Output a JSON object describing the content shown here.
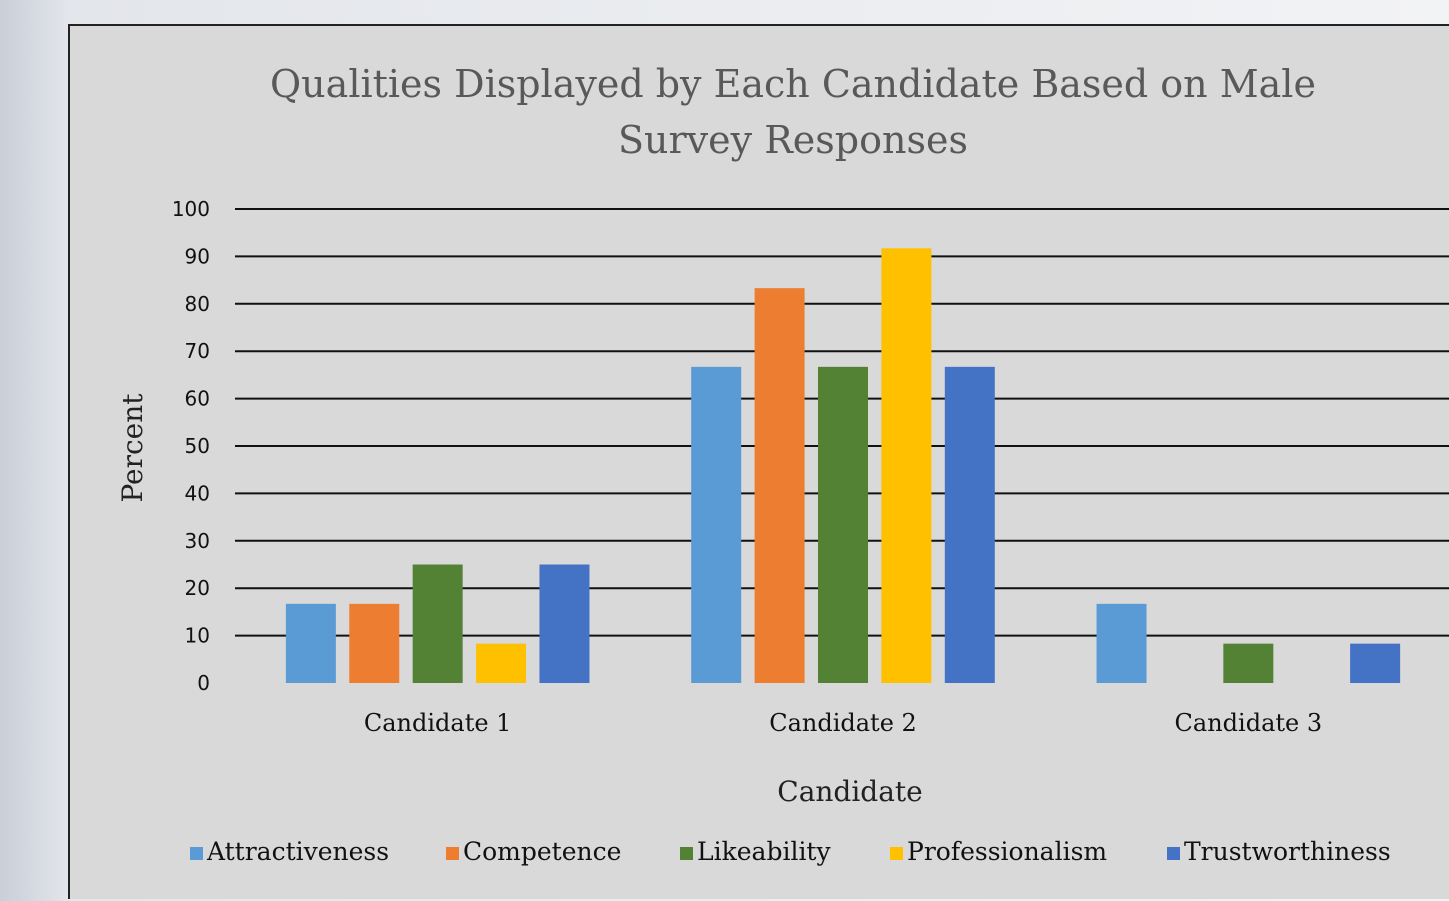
{
  "chart_data": {
    "type": "bar",
    "title": "Qualities Displayed by Each Candidate Based on Male Survey Responses",
    "title_lines": [
      "Qualities Displayed by Each Candidate Based on Male",
      "Survey Responses"
    ],
    "xlabel": "Candidate",
    "ylabel": "Percent",
    "categories": [
      "Candidate 1",
      "Candidate 2",
      "Candidate 3"
    ],
    "yticks": [
      "0",
      "10",
      "20",
      "30",
      "40",
      "50",
      "60",
      "70",
      "80",
      "90",
      "100"
    ],
    "ylim": [
      0,
      100
    ],
    "grid": true,
    "legend_position": "bottom",
    "series": [
      {
        "name": "Attractiveness",
        "color": "#5b9bd5",
        "values": [
          16.7,
          66.7,
          16.7
        ]
      },
      {
        "name": "Competence",
        "color": "#ed7d31",
        "values": [
          16.7,
          83.3,
          0
        ]
      },
      {
        "name": "Likeability",
        "color": "#548235",
        "values": [
          25,
          66.7,
          8.3
        ]
      },
      {
        "name": "Professionalism",
        "color": "#ffc000",
        "values": [
          8.3,
          91.7,
          0
        ]
      },
      {
        "name": "Trustworthiness",
        "color": "#4472c4",
        "values": [
          25,
          66.7,
          8.3
        ]
      }
    ]
  }
}
